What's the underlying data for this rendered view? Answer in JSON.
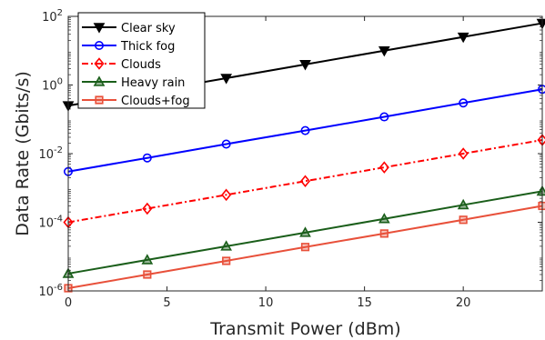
{
  "chart_data": {
    "type": "line",
    "title": "",
    "xlabel": "Transmit Power (dBm)",
    "ylabel": "Data Rate (Gbits/s)",
    "xlim": [
      0,
      24
    ],
    "ylim_exp": [
      -6,
      2
    ],
    "y_scale": "log",
    "grid": false,
    "legend_position": "top-left",
    "x_ticks": [
      "0",
      "5",
      "10",
      "15",
      "20"
    ],
    "y_tick_base": "10",
    "y_ticks_exp": [
      "-6",
      "-4",
      "-2",
      "0",
      "2"
    ],
    "x": [
      0,
      4,
      8,
      12,
      16,
      20,
      24
    ],
    "series": [
      {
        "name": "Clear sky",
        "color": "#000000",
        "marker": "triangle-down",
        "dash": "solid",
        "values": [
          0.25,
          0.63,
          1.58,
          3.98,
          10.0,
          25.1,
          63.1
        ]
      },
      {
        "name": "Thick fog",
        "color": "#0000ff",
        "marker": "circle",
        "dash": "solid",
        "values": [
          0.003,
          0.0075,
          0.019,
          0.047,
          0.118,
          0.3,
          0.75
        ]
      },
      {
        "name": "Clouds",
        "color": "#ff0000",
        "marker": "diamond",
        "dash": "dashdot",
        "values": [
          0.0001,
          0.00025,
          0.00063,
          0.00158,
          0.00398,
          0.01,
          0.025
        ]
      },
      {
        "name": "Heavy rain",
        "color": "#1a5e1a",
        "marker": "triangle-up",
        "dash": "solid",
        "values": [
          3.2e-06,
          8e-06,
          2e-05,
          5e-05,
          0.000126,
          0.00032,
          0.0008
        ]
      },
      {
        "name": "Clouds+fog",
        "color": "#e8503a",
        "marker": "square",
        "dash": "solid",
        "values": [
          1.2e-06,
          3e-06,
          7.5e-06,
          1.9e-05,
          4.7e-05,
          0.000118,
          0.0003
        ]
      }
    ]
  }
}
